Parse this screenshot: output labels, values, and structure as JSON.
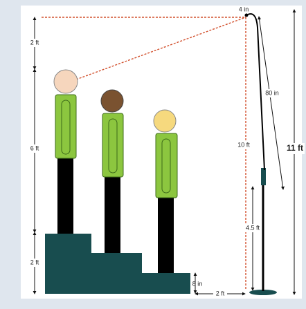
{
  "labels": {
    "top_height": "2 ft",
    "body_height": "6 ft",
    "stair_height": "2 ft",
    "mic_height": "10 ft",
    "total_height": "11 ft",
    "boom_length": "80 in",
    "stand_height": "4.5 ft",
    "step_height": "8 in",
    "floor_distance": "2 ft",
    "mic_offset": "4 in"
  }
}
